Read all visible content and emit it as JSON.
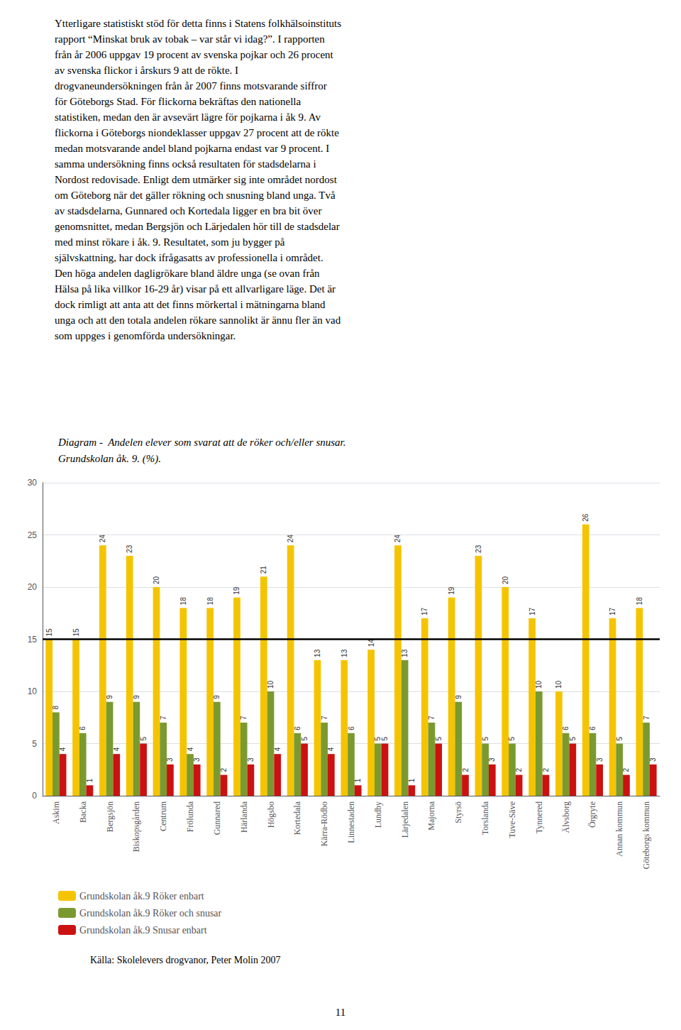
{
  "chart_data": {
    "type": "bar",
    "title": "Diagram -  Andelen elever som svarat att de röker och/eller snusar.\nGrundskolan åk. 9. (%).",
    "categories": [
      "Askim",
      "Backa",
      "Bergsjön",
      "Biskopsgården",
      "Centrum",
      "Frölunda",
      "Gunnared",
      "Härlanda",
      "Högsbo",
      "Kortedala",
      "Kärra-Rödbo",
      "Linnestaden",
      "Lundby",
      "Lärjedalen",
      "Majorna",
      "Styrsö",
      "Torslanda",
      "Tuve-Säve",
      "Tynnered",
      "Älvsborg",
      "Örgryte",
      "Annan kommun",
      "Göteborgs kommun"
    ],
    "series": [
      {
        "name": "Grundskolan åk.9 Röker enbart",
        "color": "#F5C400",
        "values": [
          15,
          15,
          24,
          23,
          20,
          18,
          18,
          19,
          21,
          24,
          13,
          13,
          14,
          24,
          17,
          19,
          23,
          20,
          17,
          10,
          26,
          17,
          18
        ]
      },
      {
        "name": "Grundskolan åk.9 Röker och snusar",
        "color": "#7A9A30",
        "values": [
          8,
          6,
          9,
          9,
          7,
          4,
          9,
          7,
          10,
          6,
          7,
          6,
          5,
          13,
          7,
          9,
          5,
          5,
          10,
          6,
          6,
          5,
          7
        ]
      },
      {
        "name": "Grundskolan åk.9 Snusar enbart",
        "color": "#CC1111",
        "values": [
          4,
          1,
          4,
          5,
          3,
          3,
          2,
          3,
          4,
          5,
          4,
          1,
          5,
          1,
          5,
          2,
          3,
          2,
          2,
          5,
          3,
          2,
          3
        ]
      }
    ],
    "reference_line": {
      "value": 15,
      "color": "#000000"
    },
    "ylim": [
      0,
      30
    ],
    "yticks": [
      0,
      5,
      10,
      15,
      20,
      25,
      30
    ],
    "grid": true,
    "legend": "lower left",
    "data_labels": true,
    "annotations": [
      "Ytterligare statistiskt stöd för detta finns i Statens folkhälsoinstituts\nrapport “Minskat bruk av tobak – var står vi idag?”. I rapporten\nfrån år 2006 uppgav 19 procent av svenska pojkar och 26 procent\nav svenska flickor i årskurs 9 att de rökte. I\ndrogvaneundersökningen från år 2007 finns motsvarande siffror\nför Göteborgs Stad. För flickorna bekräftas den nationella\nstatistiken, medan den är avsevärt lägre för pojkarna i åk 9. Av\nflickorna i Göteborgs niondeklasser uppgav 27 procent att de rökte\nmedan motsvarande andel bland pojkarna endast var 9 procent. I\nsamma undersökning finns också resultaten för stadsdelarna i\nNordost redovisade. Enligt dem utmärker sig inte området nordost\nom Göteborg när det gäller rökning och snusning bland unga. Två\nav stadsdelarna, Gunnared och Kortedala ligger en bra bit över\ngenomsnittet, medan Bergsjön och Lärjedalen hör till de stadsdelar\nmed minst rökare i åk. 9. Resultatet, som ju bygger på\nsjälvskattning, har dock ifrågasatts av professionella i området.\nDen höga andelen dagligrökare bland äldre unga (se ovan från\nHälsa på lika villkor 16-29 år) visar på ett allvarligare läge. Det är\ndock rimligt att anta att det finns mörkertal i mätningarna bland\nunga och att den totala andelen rökare sannolikt är ännu fler än vad\nsom uppges i genomförda undersökningar.",
      "Källa: Skolelevers drogvanor, Peter Molin 2007",
      "11"
    ]
  }
}
